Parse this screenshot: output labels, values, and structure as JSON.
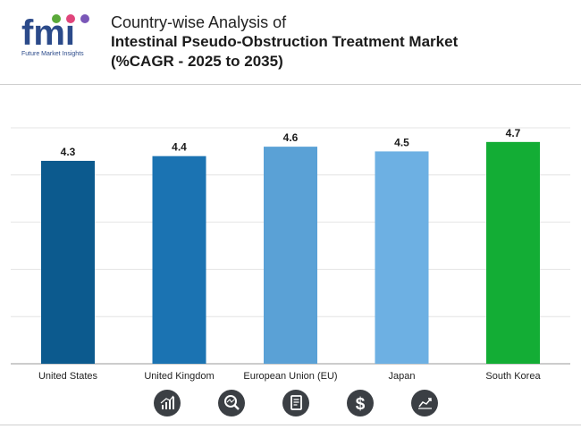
{
  "brand": {
    "logo_text": "fmi",
    "tagline": "Future Market Insights",
    "colors": {
      "blue": "#2b4a8a",
      "green": "#5aa93a",
      "pink": "#e0457b",
      "purple": "#7a57b8"
    }
  },
  "header": {
    "title_line1": "Country-wise Analysis of",
    "title_line2": "Intestinal Pseudo-Obstruction Treatment Market",
    "title_line3": "(%CAGR - 2025 to 2035)"
  },
  "chart_data": {
    "type": "bar",
    "title": "Country-wise Analysis of Intestinal Pseudo-Obstruction Treatment Market (%CAGR - 2025 to 2035)",
    "xlabel": "",
    "ylabel": "",
    "ylim": [
      0,
      5
    ],
    "grid": true,
    "categories": [
      "United States",
      "United Kingdom",
      "European Union (EU)",
      "Japan",
      "South Korea"
    ],
    "values": [
      4.3,
      4.4,
      4.6,
      4.5,
      4.7
    ],
    "value_labels": [
      "4.3",
      "4.4",
      "4.6",
      "4.5",
      "4.7"
    ],
    "colors": [
      "#0c5a8e",
      "#1b73b2",
      "#5aa1d6",
      "#6db0e3",
      "#13ad35"
    ]
  },
  "footer_icons": [
    "bar-growth-icon",
    "magnifier-chart-icon",
    "report-document-icon",
    "dollar-icon",
    "trend-line-icon"
  ]
}
